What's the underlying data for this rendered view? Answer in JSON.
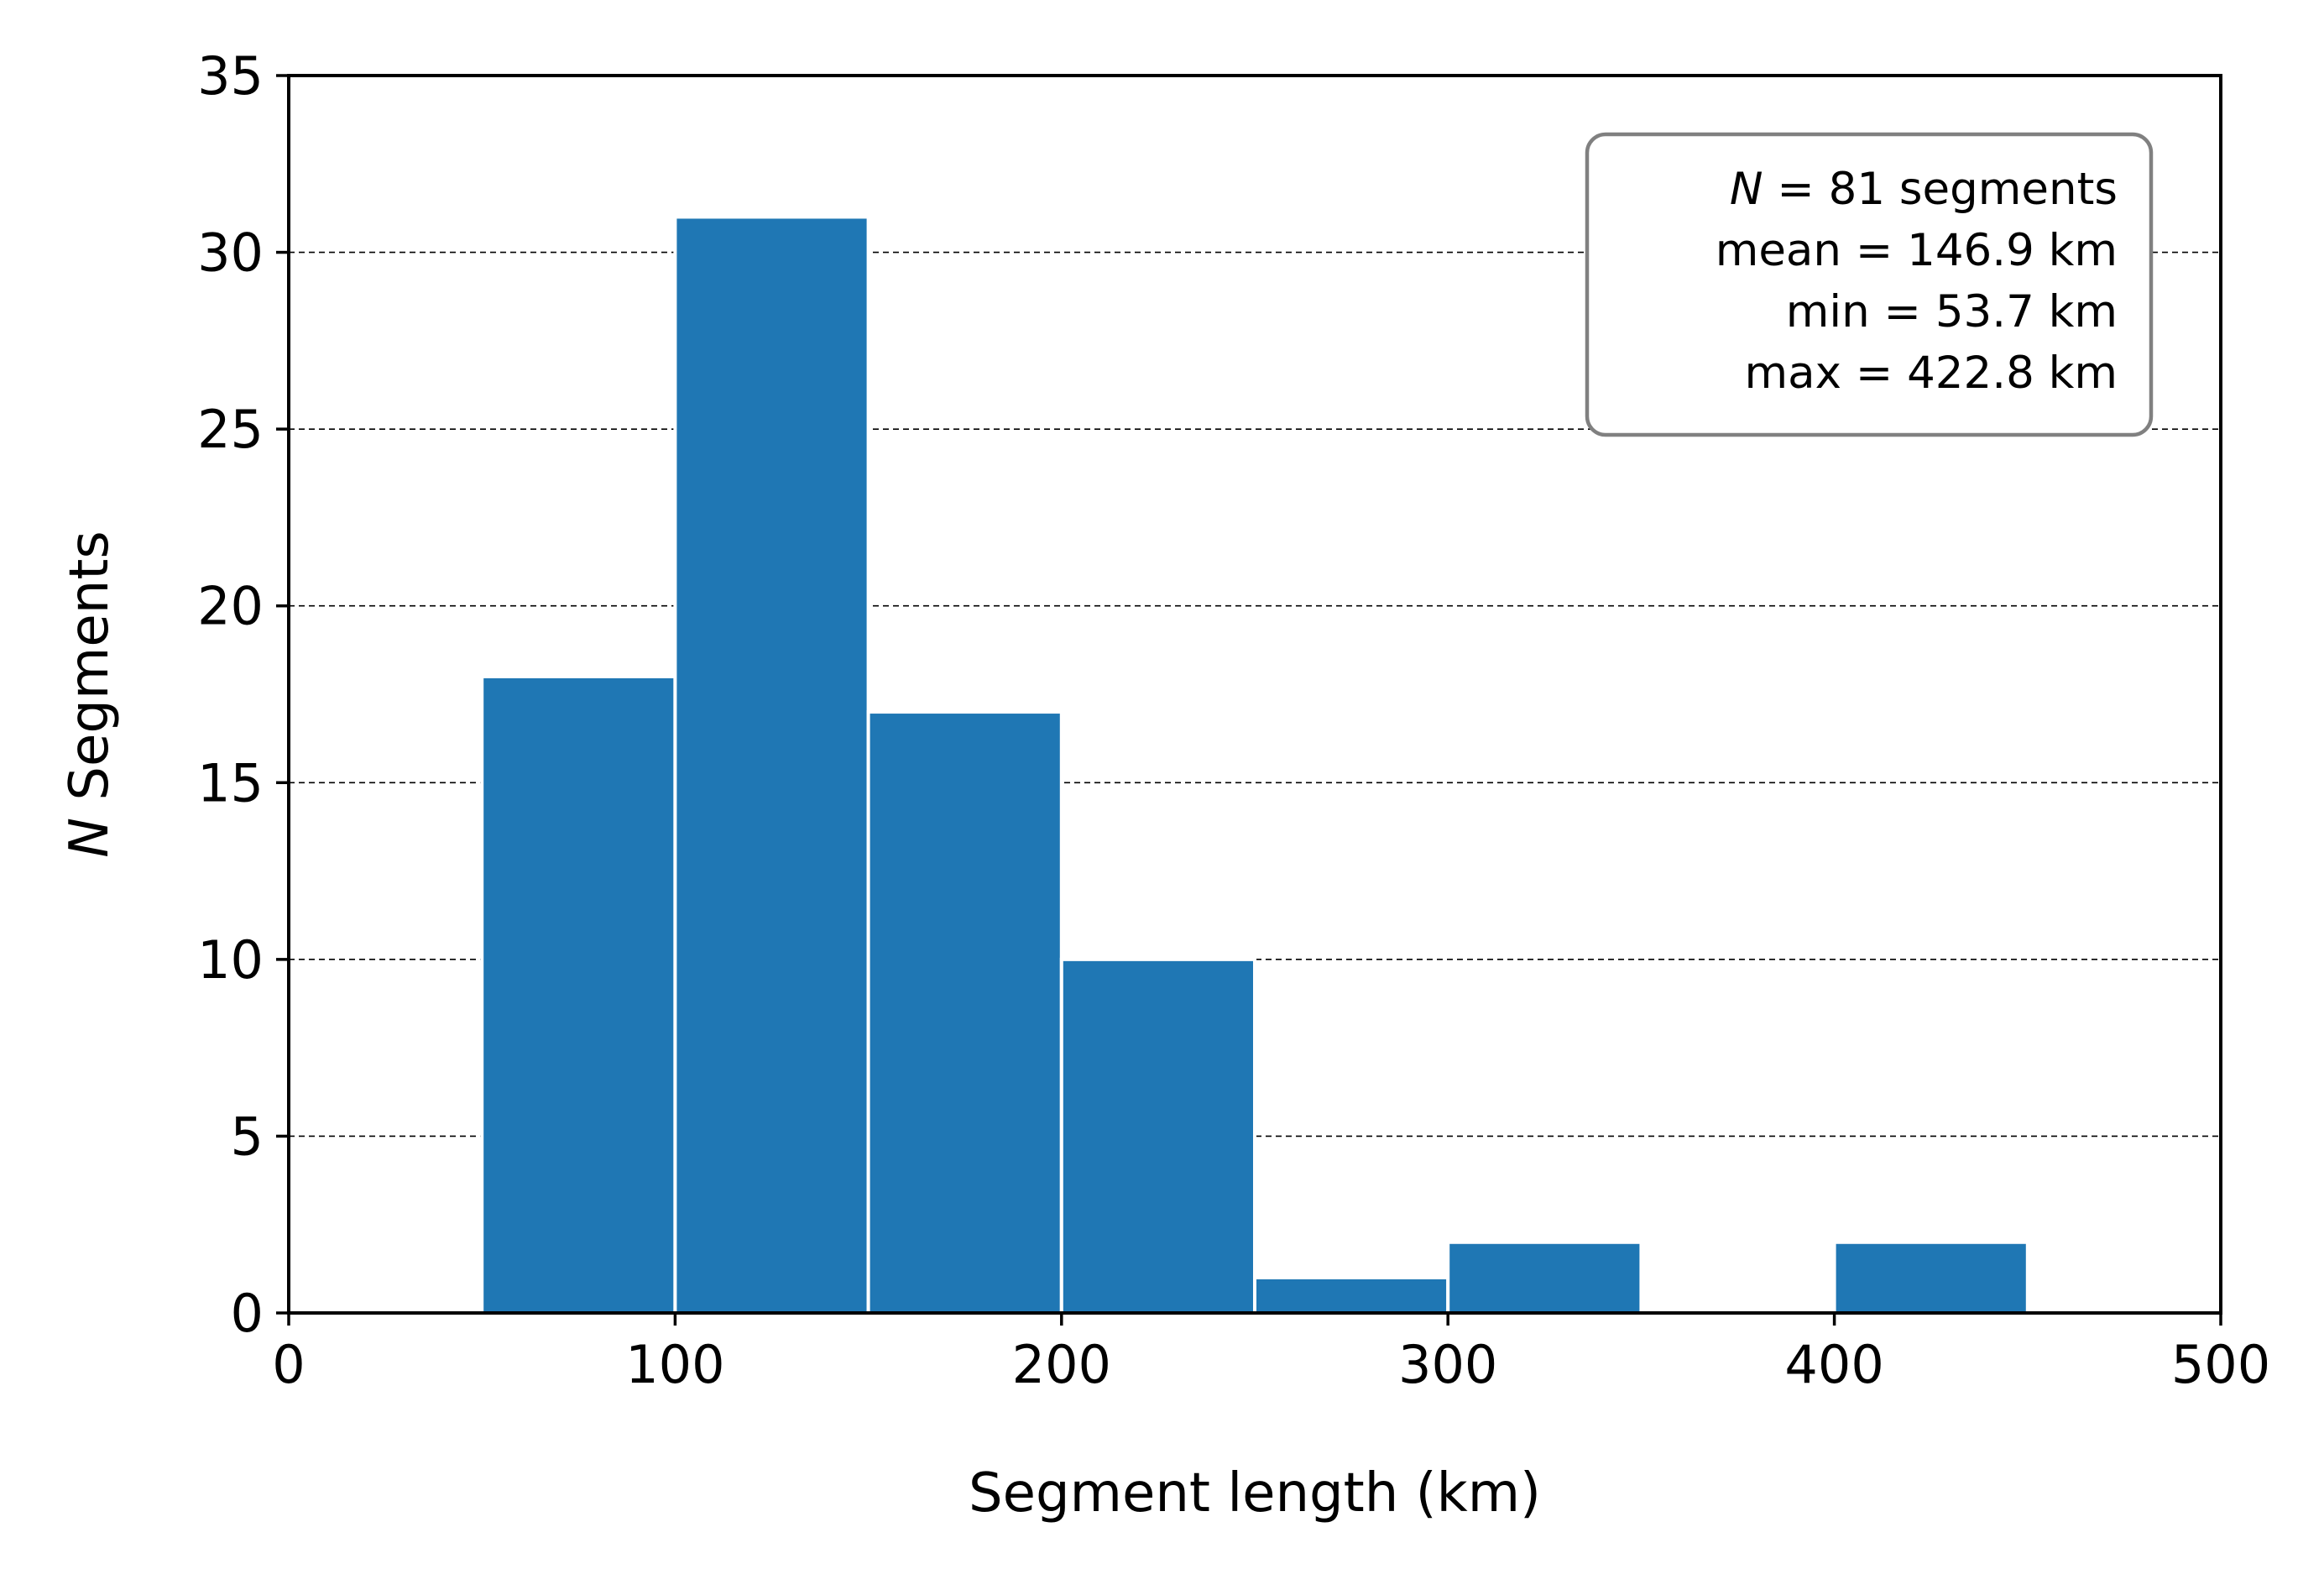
{
  "chart_data": {
    "type": "bar",
    "title": "",
    "xlabel": "Segment length (km)",
    "ylabel_italic": "N",
    "ylabel_rest": " Segments",
    "xlim": [
      0,
      500
    ],
    "ylim": [
      0,
      35
    ],
    "x_ticks": [
      0,
      100,
      200,
      300,
      400,
      500
    ],
    "y_ticks": [
      0,
      5,
      10,
      15,
      20,
      25,
      30,
      35
    ],
    "grid": "y-dashed",
    "bar_color": "#1f77b4",
    "bins": [
      {
        "start": 50,
        "end": 100,
        "count": 18
      },
      {
        "start": 100,
        "end": 150,
        "count": 31
      },
      {
        "start": 150,
        "end": 200,
        "count": 17
      },
      {
        "start": 200,
        "end": 250,
        "count": 10
      },
      {
        "start": 250,
        "end": 300,
        "count": 1
      },
      {
        "start": 300,
        "end": 350,
        "count": 2
      },
      {
        "start": 350,
        "end": 400,
        "count": 0
      },
      {
        "start": 400,
        "end": 450,
        "count": 2
      }
    ],
    "annotation": {
      "placement": "top-right",
      "lines": [
        {
          "italic": "N",
          "rest": " = 81 segments"
        },
        {
          "italic": "",
          "rest": "mean = 146.9 km"
        },
        {
          "italic": "",
          "rest": "min = 53.7 km"
        },
        {
          "italic": "",
          "rest": "max = 422.8 km"
        }
      ]
    }
  }
}
